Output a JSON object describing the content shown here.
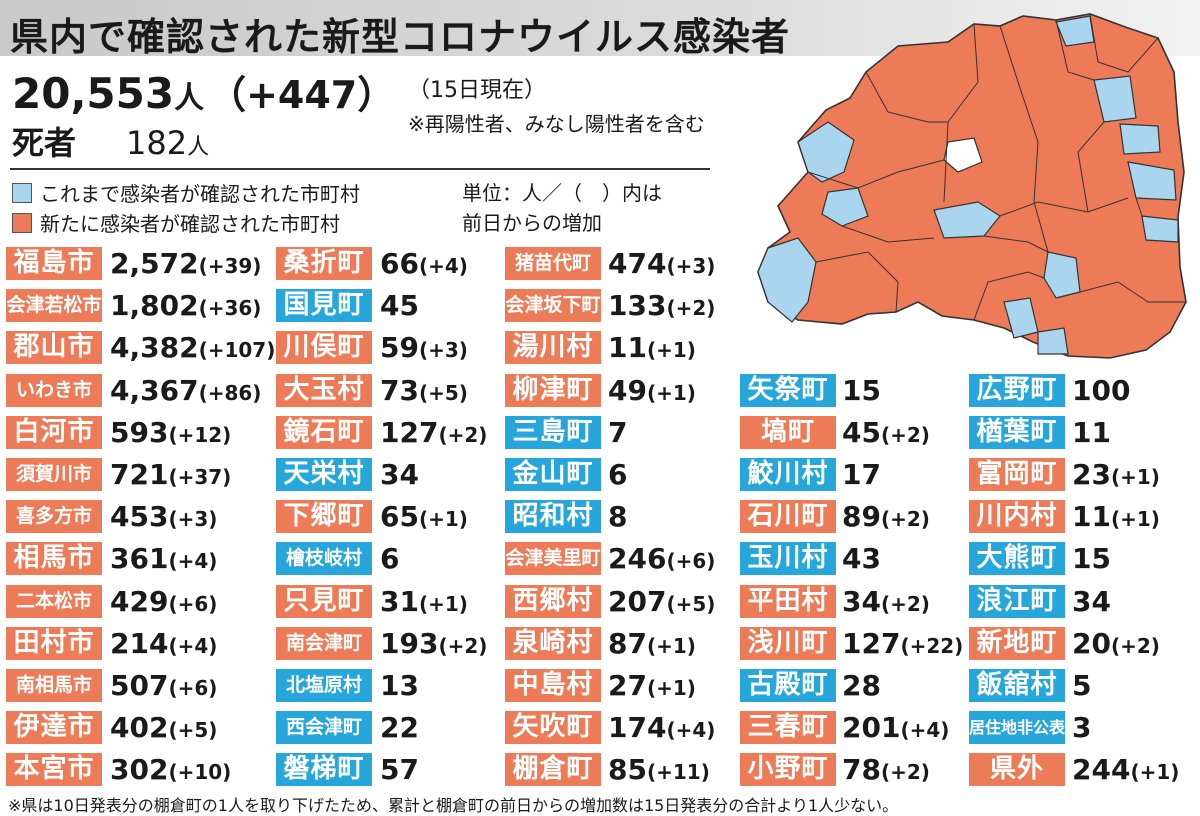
{
  "title": "県内で確認された新型コロナウイルス感染者",
  "total": {
    "value": "20,553",
    "unit": "人",
    "diff": "（+447）"
  },
  "as_of": "（15日現在）",
  "note_incl": "※再陽性者、みなし陽性者を含む",
  "deaths": {
    "label": "死者",
    "value": "182",
    "unit": "人"
  },
  "legend": {
    "confirmed": "これまで感染者が確認された市町村",
    "new": "新たに感染者が確認された市町村",
    "unit_note_1": "単位：人／（　）内は",
    "unit_note_2": "前日からの増加"
  },
  "colors": {
    "new": "#ee7b58",
    "confirmed": "#27a6dc",
    "map_new": "#ee7b58",
    "map_confirmed": "#a9d6ee",
    "map_none": "#ffffff"
  },
  "columns": [
    [
      {
        "name": "福島市",
        "status": "new",
        "count": "2,572",
        "diff": "(+39)"
      },
      {
        "name": "会津若松市",
        "status": "new",
        "count": "1,802",
        "diff": "(+36)"
      },
      {
        "name": "郡山市",
        "status": "new",
        "count": "4,382",
        "diff": "(+107)"
      },
      {
        "name": "いわき市",
        "status": "new",
        "count": "4,367",
        "diff": "(+86)"
      },
      {
        "name": "白河市",
        "status": "new",
        "count": "593",
        "diff": "(+12)"
      },
      {
        "name": "須賀川市",
        "status": "new",
        "count": "721",
        "diff": "(+37)"
      },
      {
        "name": "喜多方市",
        "status": "new",
        "count": "453",
        "diff": "(+3)"
      },
      {
        "name": "相馬市",
        "status": "new",
        "count": "361",
        "diff": "(+4)"
      },
      {
        "name": "二本松市",
        "status": "new",
        "count": "429",
        "diff": "(+6)"
      },
      {
        "name": "田村市",
        "status": "new",
        "count": "214",
        "diff": "(+4)"
      },
      {
        "name": "南相馬市",
        "status": "new",
        "count": "507",
        "diff": "(+6)"
      },
      {
        "name": "伊達市",
        "status": "new",
        "count": "402",
        "diff": "(+5)"
      },
      {
        "name": "本宮市",
        "status": "new",
        "count": "302",
        "diff": "(+10)"
      }
    ],
    [
      {
        "name": "桑折町",
        "status": "new",
        "count": "66",
        "diff": "(+4)"
      },
      {
        "name": "国見町",
        "status": "confirmed",
        "count": "45",
        "diff": ""
      },
      {
        "name": "川俣町",
        "status": "new",
        "count": "59",
        "diff": "(+3)"
      },
      {
        "name": "大玉村",
        "status": "new",
        "count": "73",
        "diff": "(+5)"
      },
      {
        "name": "鏡石町",
        "status": "new",
        "count": "127",
        "diff": "(+2)"
      },
      {
        "name": "天栄村",
        "status": "confirmed",
        "count": "34",
        "diff": ""
      },
      {
        "name": "下郷町",
        "status": "new",
        "count": "65",
        "diff": "(+1)"
      },
      {
        "name": "檜枝岐村",
        "status": "confirmed",
        "count": "6",
        "diff": ""
      },
      {
        "name": "只見町",
        "status": "new",
        "count": "31",
        "diff": "(+1)"
      },
      {
        "name": "南会津町",
        "status": "new",
        "count": "193",
        "diff": "(+2)"
      },
      {
        "name": "北塩原村",
        "status": "confirmed",
        "count": "13",
        "diff": ""
      },
      {
        "name": "西会津町",
        "status": "confirmed",
        "count": "22",
        "diff": ""
      },
      {
        "name": "磐梯町",
        "status": "confirmed",
        "count": "57",
        "diff": ""
      }
    ],
    [
      {
        "name": "猪苗代町",
        "status": "new",
        "count": "474",
        "diff": "(+3)"
      },
      {
        "name": "会津坂下町",
        "status": "new",
        "count": "133",
        "diff": "(+2)"
      },
      {
        "name": "湯川村",
        "status": "new",
        "count": "11",
        "diff": "(+1)"
      },
      {
        "name": "柳津町",
        "status": "new",
        "count": "49",
        "diff": "(+1)"
      },
      {
        "name": "三島町",
        "status": "confirmed",
        "count": "7",
        "diff": ""
      },
      {
        "name": "金山町",
        "status": "confirmed",
        "count": "6",
        "diff": ""
      },
      {
        "name": "昭和村",
        "status": "confirmed",
        "count": "8",
        "diff": ""
      },
      {
        "name": "会津美里町",
        "status": "new",
        "count": "246",
        "diff": "(+6)"
      },
      {
        "name": "西郷村",
        "status": "new",
        "count": "207",
        "diff": "(+5)"
      },
      {
        "name": "泉崎村",
        "status": "new",
        "count": "87",
        "diff": "(+1)"
      },
      {
        "name": "中島村",
        "status": "new",
        "count": "27",
        "diff": "(+1)"
      },
      {
        "name": "矢吹町",
        "status": "new",
        "count": "174",
        "diff": "(+4)"
      },
      {
        "name": "棚倉町",
        "status": "new",
        "count": "85",
        "diff": "(+11)"
      }
    ],
    [
      {
        "name": "矢祭町",
        "status": "confirmed",
        "count": "15",
        "diff": ""
      },
      {
        "name": "塙町",
        "status": "new",
        "count": "45",
        "diff": "(+2)"
      },
      {
        "name": "鮫川村",
        "status": "confirmed",
        "count": "17",
        "diff": ""
      },
      {
        "name": "石川町",
        "status": "new",
        "count": "89",
        "diff": "(+2)"
      },
      {
        "name": "玉川村",
        "status": "confirmed",
        "count": "43",
        "diff": ""
      },
      {
        "name": "平田村",
        "status": "new",
        "count": "34",
        "diff": "(+2)"
      },
      {
        "name": "浅川町",
        "status": "new",
        "count": "127",
        "diff": "(+22)"
      },
      {
        "name": "古殿町",
        "status": "confirmed",
        "count": "28",
        "diff": ""
      },
      {
        "name": "三春町",
        "status": "new",
        "count": "201",
        "diff": "(+4)"
      },
      {
        "name": "小野町",
        "status": "new",
        "count": "78",
        "diff": "(+2)"
      }
    ],
    [
      {
        "name": "広野町",
        "status": "confirmed",
        "count": "100",
        "diff": ""
      },
      {
        "name": "楢葉町",
        "status": "confirmed",
        "count": "11",
        "diff": ""
      },
      {
        "name": "富岡町",
        "status": "new",
        "count": "23",
        "diff": "(+1)"
      },
      {
        "name": "川内村",
        "status": "new",
        "count": "11",
        "diff": "(+1)"
      },
      {
        "name": "大熊町",
        "status": "confirmed",
        "count": "15",
        "diff": ""
      },
      {
        "name": "浪江町",
        "status": "confirmed",
        "count": "34",
        "diff": ""
      },
      {
        "name": "新地町",
        "status": "new",
        "count": "20",
        "diff": "(+2)"
      },
      {
        "name": "飯舘村",
        "status": "confirmed",
        "count": "5",
        "diff": ""
      },
      {
        "name": "居住地非公表",
        "status": "confirmed",
        "count": "3",
        "diff": ""
      },
      {
        "name": "県外",
        "status": "new",
        "count": "244",
        "diff": "(+1)"
      }
    ]
  ],
  "footnote": "※県は10日発表分の棚倉町の1人を取り下げたため、累計と棚倉町の前日からの増加数は15日発表分の合計より1人少ない。"
}
